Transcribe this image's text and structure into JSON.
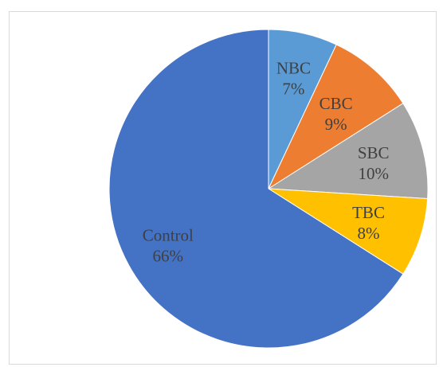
{
  "chart_data": {
    "type": "pie",
    "title": "",
    "start_angle_deg": 0,
    "direction": "clockwise",
    "slices": [
      {
        "name": "NBC",
        "value": 7,
        "label": "7%",
        "color": "#5b9bd5"
      },
      {
        "name": "CBC",
        "value": 9,
        "label": "9%",
        "color": "#ed7d31"
      },
      {
        "name": "SBC",
        "value": 10,
        "label": "10%",
        "color": "#a5a5a5"
      },
      {
        "name": "TBC",
        "value": 8,
        "label": "8%",
        "color": "#ffc000"
      },
      {
        "name": "Control",
        "value": 66,
        "label": "66%",
        "color": "#4472c4"
      }
    ]
  }
}
